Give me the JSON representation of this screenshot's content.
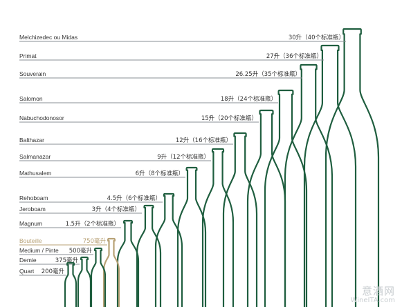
{
  "accent_color": "#1f5e3f",
  "highlight_color": "#b8a276",
  "line_color": "#8a8f94",
  "text_color": "#333333",
  "bottles": [
    {
      "name": "Melchizedec ou Midas",
      "volume": "30升（40个标准瓶）",
      "liters": 30
    },
    {
      "name": "Primat",
      "volume": "27升（36个标准瓶）",
      "liters": 27
    },
    {
      "name": "Souverain",
      "volume": "26.25升（35个标准瓶）",
      "liters": 26.25
    },
    {
      "name": "Salomon",
      "volume": "18升（24个标准瓶）",
      "liters": 18
    },
    {
      "name": "Nabuchodonosor",
      "volume": "15升（20个标准瓶）",
      "liters": 15
    },
    {
      "name": "Balthazar",
      "volume": "12升（16个标准瓶）",
      "liters": 12
    },
    {
      "name": "Salmanazar",
      "volume": "9升（12个标准瓶）",
      "liters": 9
    },
    {
      "name": "Mathusalem",
      "volume": "6升（8个标准瓶）",
      "liters": 6
    },
    {
      "name": "Rehoboam",
      "volume": "4.5升（6个标准瓶）",
      "liters": 4.5
    },
    {
      "name": "Jeroboam",
      "volume": "3升（4个标准瓶）",
      "liters": 3
    },
    {
      "name": "Magnum",
      "volume": "1.5升（2个标准瓶）",
      "liters": 1.5
    },
    {
      "name": "Bouteille",
      "volume": "750毫升",
      "liters": 0.75,
      "highlight": true
    },
    {
      "name": "Medium / Pinte",
      "volume": "500毫升",
      "liters": 0.5
    },
    {
      "name": "Demie",
      "volume": "375毫升",
      "liters": 0.375
    },
    {
      "name": "Quart",
      "volume": "200毫升",
      "liters": 0.2
    }
  ],
  "watermark": {
    "cn": "意酒网",
    "en": "WineITA.com"
  }
}
